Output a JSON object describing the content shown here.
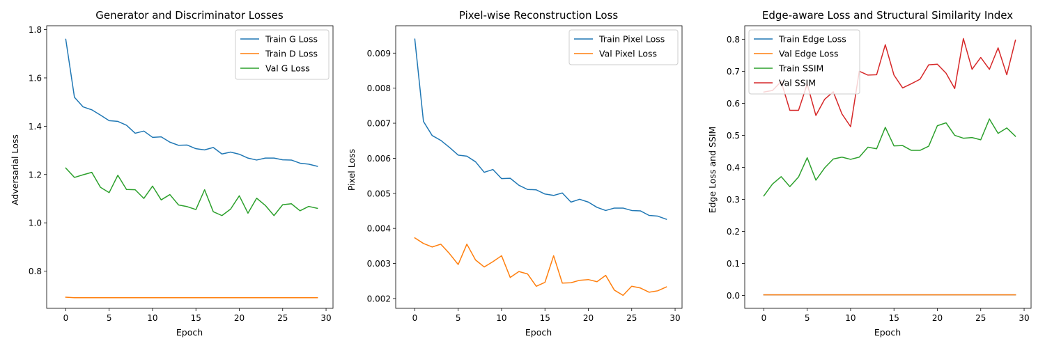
{
  "chart_data": [
    {
      "type": "line",
      "title": "Generator and Discriminator Losses",
      "xlabel": "Epoch",
      "ylabel": "Adversarial Loss",
      "xlim": [
        -2.2,
        30.8
      ],
      "ylim": [
        0.646,
        1.816
      ],
      "xticks": [
        0,
        5,
        10,
        15,
        20,
        25,
        30
      ],
      "xtick_labels": [
        "0",
        "5",
        "10",
        "15",
        "20",
        "25",
        "30"
      ],
      "yticks": [
        0.8,
        1.0,
        1.2,
        1.4,
        1.6,
        1.8
      ],
      "ytick_labels": [
        "0.8",
        "1.0",
        "1.2",
        "1.4",
        "1.6",
        "1.8"
      ],
      "legend_position": "top-right",
      "series": [
        {
          "name": "Train G Loss",
          "color": "#1f77b4",
          "x": [
            0,
            1,
            2,
            3,
            4,
            5,
            6,
            7,
            8,
            9,
            10,
            11,
            12,
            13,
            14,
            15,
            16,
            17,
            18,
            19,
            20,
            21,
            22,
            23,
            24,
            25,
            26,
            27,
            28,
            29
          ],
          "y": [
            1.76,
            1.52,
            1.48,
            1.468,
            1.446,
            1.423,
            1.42,
            1.404,
            1.371,
            1.38,
            1.354,
            1.356,
            1.334,
            1.321,
            1.322,
            1.307,
            1.302,
            1.312,
            1.285,
            1.293,
            1.284,
            1.268,
            1.26,
            1.268,
            1.268,
            1.261,
            1.26,
            1.247,
            1.243,
            1.234
          ]
        },
        {
          "name": "Train D Loss",
          "color": "#ff7f0e",
          "x": [
            0,
            1,
            2,
            3,
            4,
            5,
            6,
            7,
            8,
            9,
            10,
            11,
            12,
            13,
            14,
            15,
            16,
            17,
            18,
            19,
            20,
            21,
            22,
            23,
            24,
            25,
            26,
            27,
            28,
            29
          ],
          "y": [
            0.692,
            0.69,
            0.69,
            0.69,
            0.69,
            0.69,
            0.69,
            0.69,
            0.69,
            0.69,
            0.69,
            0.69,
            0.69,
            0.69,
            0.69,
            0.69,
            0.69,
            0.69,
            0.69,
            0.69,
            0.69,
            0.69,
            0.69,
            0.69,
            0.69,
            0.69,
            0.69,
            0.69,
            0.69,
            0.69
          ]
        },
        {
          "name": "Val G Loss",
          "color": "#2ca02c",
          "x": [
            0,
            1,
            2,
            3,
            4,
            5,
            6,
            7,
            8,
            9,
            10,
            11,
            12,
            13,
            14,
            15,
            16,
            17,
            18,
            19,
            20,
            21,
            22,
            23,
            24,
            25,
            26,
            27,
            28,
            29
          ],
          "y": [
            1.227,
            1.188,
            1.199,
            1.209,
            1.147,
            1.125,
            1.197,
            1.138,
            1.137,
            1.101,
            1.152,
            1.095,
            1.117,
            1.074,
            1.067,
            1.055,
            1.137,
            1.046,
            1.03,
            1.057,
            1.112,
            1.04,
            1.102,
            1.072,
            1.03,
            1.075,
            1.079,
            1.05,
            1.068,
            1.06
          ]
        }
      ]
    },
    {
      "type": "line",
      "title": "Pixel-wise Reconstruction Loss",
      "xlabel": "Epoch",
      "ylabel": "Pixel Loss",
      "xlim": [
        -2.2,
        30.8
      ],
      "ylim": [
        0.00172,
        0.00978
      ],
      "xticks": [
        0,
        5,
        10,
        15,
        20,
        25,
        30
      ],
      "xtick_labels": [
        "0",
        "5",
        "10",
        "15",
        "20",
        "25",
        "30"
      ],
      "yticks": [
        0.002,
        0.003,
        0.004,
        0.005,
        0.006,
        0.007,
        0.008,
        0.009
      ],
      "ytick_labels": [
        "0.002",
        "0.003",
        "0.004",
        "0.005",
        "0.006",
        "0.007",
        "0.008",
        "0.009"
      ],
      "legend_position": "top-right",
      "series": [
        {
          "name": "Train Pixel Loss",
          "color": "#1f77b4",
          "x": [
            0,
            1,
            2,
            3,
            4,
            5,
            6,
            7,
            8,
            9,
            10,
            11,
            12,
            13,
            14,
            15,
            16,
            17,
            18,
            19,
            20,
            21,
            22,
            23,
            24,
            25,
            26,
            27,
            28,
            29
          ],
          "y": [
            0.0094,
            0.00705,
            0.00665,
            0.00651,
            0.00631,
            0.00609,
            0.00606,
            0.0059,
            0.0056,
            0.00568,
            0.00542,
            0.00543,
            0.00523,
            0.00511,
            0.0051,
            0.00498,
            0.00494,
            0.00501,
            0.00475,
            0.00483,
            0.00475,
            0.0046,
            0.00451,
            0.00458,
            0.00458,
            0.00451,
            0.0045,
            0.00437,
            0.00435,
            0.00426
          ]
        },
        {
          "name": "Val Pixel Loss",
          "color": "#ff7f0e",
          "x": [
            0,
            1,
            2,
            3,
            4,
            5,
            6,
            7,
            8,
            9,
            10,
            11,
            12,
            13,
            14,
            15,
            16,
            17,
            18,
            19,
            20,
            21,
            22,
            23,
            24,
            25,
            26,
            27,
            28,
            29
          ],
          "y": [
            0.00373,
            0.00357,
            0.00347,
            0.00355,
            0.00328,
            0.00297,
            0.00355,
            0.0031,
            0.0029,
            0.00305,
            0.00322,
            0.0026,
            0.00277,
            0.0027,
            0.00235,
            0.00246,
            0.00322,
            0.00244,
            0.00245,
            0.00252,
            0.00254,
            0.00248,
            0.00266,
            0.00224,
            0.00209,
            0.00235,
            0.0023,
            0.00218,
            0.00222,
            0.00233
          ]
        }
      ]
    },
    {
      "type": "line",
      "title": "Edge-aware Loss and Structural Similarity Index",
      "xlabel": "Epoch",
      "ylabel": "Edge Loss and SSIM",
      "xlim": [
        -2.2,
        30.8
      ],
      "ylim": [
        -0.04,
        0.842
      ],
      "xticks": [
        0,
        5,
        10,
        15,
        20,
        25,
        30
      ],
      "xtick_labels": [
        "0",
        "5",
        "10",
        "15",
        "20",
        "25",
        "30"
      ],
      "yticks": [
        0.0,
        0.1,
        0.2,
        0.3,
        0.4,
        0.5,
        0.6,
        0.7,
        0.8
      ],
      "ytick_labels": [
        "0.0",
        "0.1",
        "0.2",
        "0.3",
        "0.4",
        "0.5",
        "0.6",
        "0.7",
        "0.8"
      ],
      "legend_position": "top-left",
      "series": [
        {
          "name": "Train Edge Loss",
          "color": "#1f77b4",
          "x": [
            0,
            1,
            2,
            3,
            4,
            5,
            6,
            7,
            8,
            9,
            10,
            11,
            12,
            13,
            14,
            15,
            16,
            17,
            18,
            19,
            20,
            21,
            22,
            23,
            24,
            25,
            26,
            27,
            28,
            29
          ],
          "y": [
            0.002,
            0.002,
            0.002,
            0.002,
            0.002,
            0.002,
            0.002,
            0.002,
            0.002,
            0.002,
            0.002,
            0.002,
            0.002,
            0.002,
            0.002,
            0.002,
            0.002,
            0.002,
            0.002,
            0.002,
            0.002,
            0.002,
            0.002,
            0.002,
            0.002,
            0.002,
            0.002,
            0.002,
            0.002,
            0.002
          ]
        },
        {
          "name": "Val Edge Loss",
          "color": "#ff7f0e",
          "x": [
            0,
            1,
            2,
            3,
            4,
            5,
            6,
            7,
            8,
            9,
            10,
            11,
            12,
            13,
            14,
            15,
            16,
            17,
            18,
            19,
            20,
            21,
            22,
            23,
            24,
            25,
            26,
            27,
            28,
            29
          ],
          "y": [
            0.002,
            0.002,
            0.002,
            0.002,
            0.002,
            0.002,
            0.002,
            0.002,
            0.002,
            0.002,
            0.002,
            0.002,
            0.002,
            0.002,
            0.002,
            0.002,
            0.002,
            0.002,
            0.002,
            0.002,
            0.002,
            0.002,
            0.002,
            0.002,
            0.002,
            0.002,
            0.002,
            0.002,
            0.002,
            0.002
          ]
        },
        {
          "name": "Train SSIM",
          "color": "#2ca02c",
          "x": [
            0,
            1,
            2,
            3,
            4,
            5,
            6,
            7,
            8,
            9,
            10,
            11,
            12,
            13,
            14,
            15,
            16,
            17,
            18,
            19,
            20,
            21,
            22,
            23,
            24,
            25,
            26,
            27,
            28,
            29
          ],
          "y": [
            0.311,
            0.348,
            0.371,
            0.34,
            0.37,
            0.43,
            0.36,
            0.398,
            0.426,
            0.432,
            0.425,
            0.432,
            0.463,
            0.458,
            0.525,
            0.467,
            0.468,
            0.453,
            0.453,
            0.466,
            0.53,
            0.539,
            0.5,
            0.491,
            0.493,
            0.486,
            0.551,
            0.506,
            0.523,
            0.497
          ]
        },
        {
          "name": "Val SSIM",
          "color": "#d62728",
          "x": [
            0,
            1,
            2,
            3,
            4,
            5,
            6,
            7,
            8,
            9,
            10,
            11,
            12,
            13,
            14,
            15,
            16,
            17,
            18,
            19,
            20,
            21,
            22,
            23,
            24,
            25,
            26,
            27,
            28,
            29
          ],
          "y": [
            0.635,
            0.64,
            0.668,
            0.578,
            0.578,
            0.66,
            0.562,
            0.612,
            0.636,
            0.567,
            0.527,
            0.7,
            0.688,
            0.689,
            0.783,
            0.688,
            0.648,
            0.661,
            0.675,
            0.72,
            0.722,
            0.694,
            0.646,
            0.802,
            0.706,
            0.743,
            0.706,
            0.773,
            0.689,
            0.797
          ]
        }
      ]
    }
  ]
}
